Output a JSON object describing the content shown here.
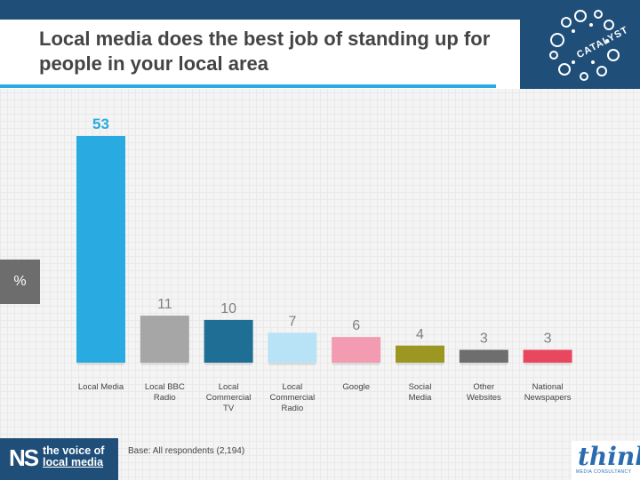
{
  "title": "Local media does the best job of standing up for people in your local area",
  "unit_label": "%",
  "base_note": "Base: All respondents (2,194)",
  "logos": {
    "left_initials": "NS",
    "left_line1": "the voice of",
    "left_line2": "local media",
    "top_right": "CATALYST",
    "bottom_right": "think",
    "bottom_right_sub": "MEDIA CONSULTANCY"
  },
  "colors": {
    "header_band": "#1f4e79",
    "title_rule": "#29abe2"
  },
  "chart_data": {
    "type": "bar",
    "categories": [
      "Local Media",
      "Local BBC Radio",
      "Local Commercial TV",
      "Local Commercial Radio",
      "Google",
      "Social Media",
      "Other Websites",
      "National Newspapers"
    ],
    "values": [
      53,
      11,
      10,
      7,
      6,
      4,
      3,
      3
    ],
    "bar_colors": [
      "#29abe2",
      "#a6a6a6",
      "#1f6e95",
      "#b8e3f7",
      "#f39bb0",
      "#9c9722",
      "#6e6e6e",
      "#e8475f"
    ],
    "label_colors": [
      "#29abe2",
      "#7f7f7f",
      "#7f7f7f",
      "#7f7f7f",
      "#7f7f7f",
      "#7f7f7f",
      "#7f7f7f",
      "#7f7f7f"
    ],
    "ylabel": "%",
    "ylim": [
      0,
      53
    ],
    "grid": false,
    "legend": "none"
  }
}
